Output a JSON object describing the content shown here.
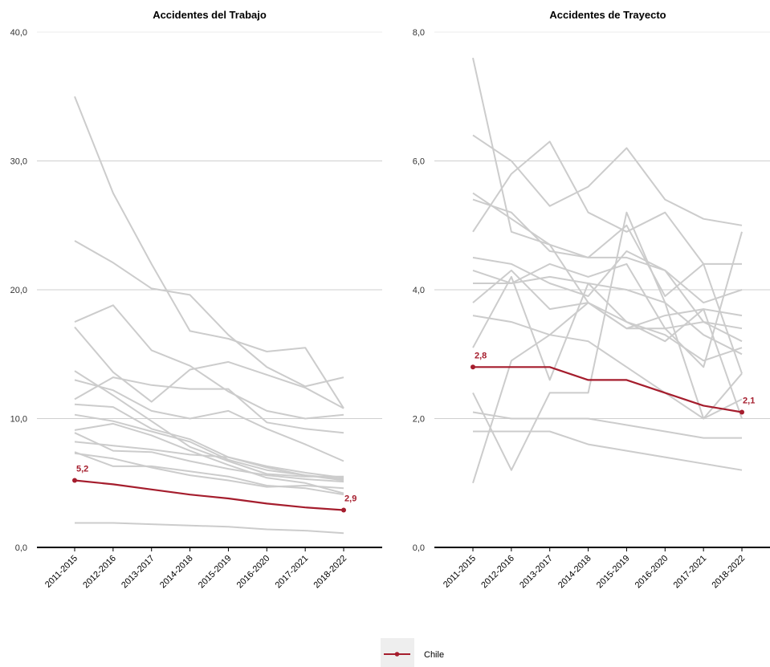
{
  "colors": {
    "highlight": "#a51d2d",
    "others": "#cccccc",
    "grid": "#cfcfcf",
    "axis": "#000000",
    "legend_bg": "#eeeeee"
  },
  "legend": {
    "label": "Chile"
  },
  "chart_data": [
    {
      "type": "line",
      "title": "Accidentes del Trabajo",
      "categories": [
        "2011-2015",
        "2012-2016",
        "2013-2017",
        "2014-2018",
        "2015-2019",
        "2016-2020",
        "2017-2021",
        "2018-2022"
      ],
      "ylim": [
        0,
        40
      ],
      "yticks": [
        0,
        10,
        20,
        30,
        40
      ],
      "ytick_labels": [
        "0,0",
        "10,0",
        "20,0",
        "30,0",
        "40,0"
      ],
      "grid": true,
      "highlight": {
        "name": "Chile",
        "values": [
          5.2,
          4.9,
          4.5,
          4.1,
          3.8,
          3.4,
          3.1,
          2.9
        ],
        "first_label": "5,2",
        "last_label": "2,9"
      },
      "background_series": [
        [
          35.0,
          27.5,
          22.0,
          16.8,
          16.2,
          15.2,
          15.5,
          10.8
        ],
        [
          23.8,
          22.1,
          20.1,
          19.6,
          16.5,
          14.0,
          12.5,
          13.2
        ],
        [
          17.5,
          18.8,
          15.3,
          14.1,
          12.1,
          10.6,
          10.0,
          10.3
        ],
        [
          17.1,
          13.6,
          11.3,
          13.8,
          14.4,
          13.4,
          12.4,
          10.8
        ],
        [
          13.7,
          11.8,
          9.8,
          7.8,
          6.7,
          5.7,
          5.5,
          5.5
        ],
        [
          13.0,
          12.2,
          10.6,
          10.0,
          10.6,
          9.2,
          8.0,
          6.7
        ],
        [
          11.5,
          13.2,
          12.6,
          12.3,
          12.3,
          9.7,
          9.2,
          8.9
        ],
        [
          11.1,
          10.9,
          9.2,
          8.4,
          7.0,
          6.3,
          5.8,
          5.4
        ],
        [
          10.3,
          9.8,
          9.0,
          8.2,
          6.8,
          6.0,
          5.6,
          5.3
        ],
        [
          9.1,
          9.6,
          8.7,
          7.5,
          6.4,
          5.4,
          5.0,
          4.2
        ],
        [
          8.9,
          7.5,
          7.4,
          6.7,
          6.1,
          5.6,
          5.3,
          5.1
        ],
        [
          8.2,
          7.9,
          7.6,
          7.2,
          7.0,
          6.2,
          5.6,
          5.2
        ],
        [
          7.4,
          6.3,
          6.3,
          5.9,
          5.5,
          4.8,
          4.6,
          4.1
        ],
        [
          7.3,
          6.9,
          6.2,
          5.6,
          5.2,
          4.7,
          4.8,
          4.6
        ],
        [
          1.9,
          1.9,
          1.8,
          1.7,
          1.6,
          1.4,
          1.3,
          1.1
        ]
      ]
    },
    {
      "type": "line",
      "title": "Accidentes de Trayecto",
      "categories": [
        "2011-2015",
        "2012-2016",
        "2013-2017",
        "2014-2018",
        "2015-2019",
        "2016-2020",
        "2017-2021",
        "2018-2022"
      ],
      "ylim": [
        0,
        8
      ],
      "yticks": [
        0,
        2,
        4,
        6,
        8
      ],
      "ytick_labels": [
        "0,0",
        "2,0",
        "4,0",
        "6,0",
        "8,0"
      ],
      "grid": true,
      "highlight": {
        "name": "Chile",
        "values": [
          2.8,
          2.8,
          2.8,
          2.6,
          2.6,
          2.4,
          2.2,
          2.1
        ],
        "first_label": "2,8",
        "last_label": "2,1"
      },
      "background_series": [
        [
          7.6,
          4.9,
          4.7,
          3.8,
          3.4,
          3.4,
          3.5,
          3.4
        ],
        [
          6.4,
          6.0,
          5.3,
          5.6,
          6.2,
          5.4,
          5.1,
          5.0
        ],
        [
          5.5,
          5.1,
          4.7,
          4.5,
          4.5,
          4.3,
          3.8,
          4.0
        ],
        [
          5.4,
          5.2,
          4.6,
          4.5,
          5.0,
          3.9,
          4.4,
          4.4
        ],
        [
          4.9,
          5.8,
          6.3,
          5.2,
          4.9,
          5.2,
          4.4,
          2.7
        ],
        [
          4.5,
          4.4,
          4.1,
          3.9,
          4.6,
          4.3,
          3.5,
          3.2
        ],
        [
          4.3,
          4.1,
          4.4,
          4.2,
          4.4,
          3.4,
          2.8,
          4.9
        ],
        [
          4.1,
          4.1,
          4.2,
          4.1,
          4.0,
          3.8,
          3.3,
          3.0
        ],
        [
          3.8,
          4.3,
          3.7,
          3.8,
          3.5,
          3.3,
          2.9,
          3.1
        ],
        [
          3.6,
          3.5,
          3.3,
          3.2,
          2.8,
          2.4,
          2.0,
          2.7
        ],
        [
          3.1,
          4.2,
          2.6,
          4.1,
          3.5,
          3.2,
          3.7,
          3.6
        ],
        [
          2.4,
          1.2,
          2.4,
          2.4,
          5.2,
          3.8,
          2.0,
          2.3
        ],
        [
          2.1,
          2.0,
          2.0,
          2.0,
          1.9,
          1.8,
          1.7,
          1.7
        ],
        [
          1.8,
          1.8,
          1.8,
          1.6,
          1.5,
          1.4,
          1.3,
          1.2
        ],
        [
          1.0,
          2.9,
          3.3,
          3.8,
          3.4,
          3.6,
          3.7,
          2.0
        ]
      ]
    }
  ]
}
